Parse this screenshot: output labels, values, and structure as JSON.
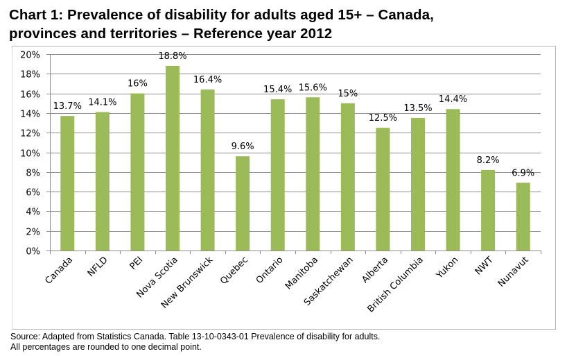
{
  "title_line1": "Chart 1: Prevalence of disability for adults aged 15+ – Canada,",
  "title_line2": "provinces and territories – Reference year 2012",
  "source_line1": "Source: Adapted from Statistics Canada.  Table  13-10-0343-01   Prevalence of disability for adults.",
  "source_line2": "All percentages are rounded to one decimal point.",
  "colors": {
    "bar": "#9bbb59",
    "grid": "#8c8c8c",
    "text": "#000000"
  },
  "chart_data": {
    "type": "bar",
    "title": "Chart 1: Prevalence of disability for adults aged 15+ – Canada, provinces and territories – Reference year 2012",
    "xlabel": "",
    "ylabel": "",
    "ylim": [
      0,
      20
    ],
    "yticks": [
      "0%",
      "2%",
      "4%",
      "6%",
      "8%",
      "10%",
      "12%",
      "14%",
      "16%",
      "18%",
      "20%"
    ],
    "grid": true,
    "legend": "none",
    "categories": [
      "Canada",
      "NFLD",
      "PEI",
      "Nova Scotia",
      "New Brunswick",
      "Quebec",
      "Ontario",
      "Manitoba",
      "Saskatchewan",
      "Alberta",
      "British Columbia",
      "Yukon",
      "NWT",
      "Nunavut"
    ],
    "values": [
      13.7,
      14.1,
      16,
      18.8,
      16.4,
      9.6,
      15.4,
      15.6,
      15,
      12.5,
      13.5,
      14.4,
      8.2,
      6.9
    ],
    "data_labels": [
      "13.7%",
      "14.1%",
      "16%",
      "18.8%",
      "16.4%",
      "9.6%",
      "15.4%",
      "15.6%",
      "15%",
      "12.5%",
      "13.5%",
      "14.4%",
      "8.2%",
      "6.9%"
    ]
  }
}
